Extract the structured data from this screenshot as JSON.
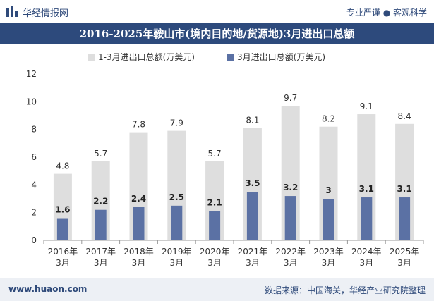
{
  "header": {
    "brand": "华经情报网",
    "slogan": "专业严谨 ● 客观科学"
  },
  "colors": {
    "title_bg": "#2d4a7c",
    "series1": "#dedede",
    "series2": "#5b71a4",
    "text": "#333333"
  },
  "footer": {
    "website": "www.huaon.com",
    "source": "数据来源：中国海关，华经产业研究院整理"
  },
  "chart_data": {
    "type": "bar",
    "title": "2016-2025年鞍山市(境内目的地/货源地)3月进出口总额",
    "categories": [
      "2016年\n3月",
      "2017年\n3月",
      "2018年\n3月",
      "2019年\n3月",
      "2020年\n3月",
      "2021年\n3月",
      "2022年\n3月",
      "2023年\n3月",
      "2024年\n3月",
      "2025年\n3月"
    ],
    "series": [
      {
        "name": "1-3月进出口总额(万美元)",
        "values": [
          4.8,
          5.7,
          7.8,
          7.9,
          5.7,
          8.1,
          9.7,
          8.2,
          9.1,
          8.4
        ]
      },
      {
        "name": "3月进出口总额(万美元)",
        "values": [
          1.6,
          2.2,
          2.4,
          2.5,
          2.1,
          3.5,
          3.2,
          3,
          3.1,
          3.1
        ]
      }
    ],
    "ylim": [
      0,
      12
    ],
    "yticks": [
      0,
      2,
      4,
      6,
      8,
      10,
      12
    ],
    "legend_position": "top-center",
    "grid": false
  }
}
